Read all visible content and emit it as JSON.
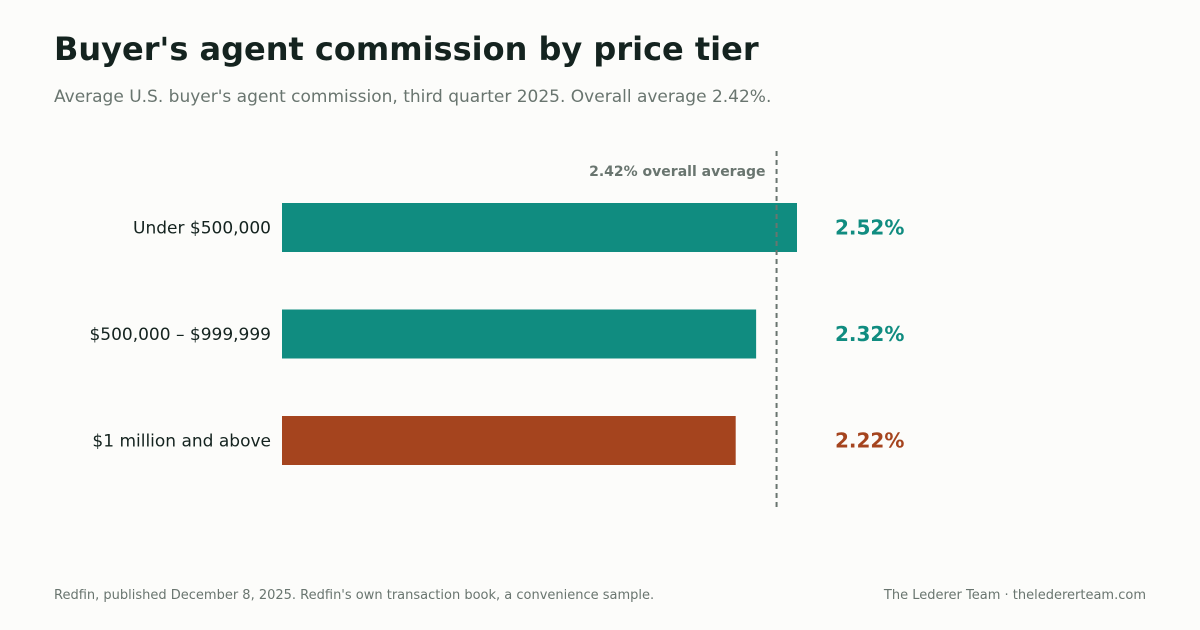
{
  "chart_data": {
    "type": "bar",
    "orientation": "horizontal",
    "title": "Buyer's agent commission by price tier",
    "subtitle": "Average U.S. buyer's agent commission, third quarter 2025. Overall average 2.42%.",
    "categories": [
      "Under $500,000",
      "$500,000 – $999,999",
      "$1 million and above"
    ],
    "values": [
      2.52,
      2.32,
      2.22
    ],
    "value_labels": [
      "2.52%",
      "2.32%",
      "2.22%"
    ],
    "bar_colors": [
      "#108c80",
      "#108c80",
      "#a5441e"
    ],
    "reference_line": {
      "value": 2.42,
      "label": "2.42% overall average",
      "color": "#69756f",
      "style": "dashed"
    },
    "xlim": [
      0,
      2.52
    ],
    "grid": false,
    "legend": "none"
  },
  "footer": {
    "source": "Redfin, published December 8, 2025. Redfin's own transaction book, a convenience sample.",
    "credit": "The Lederer Team  ·  theledererteam.com"
  }
}
